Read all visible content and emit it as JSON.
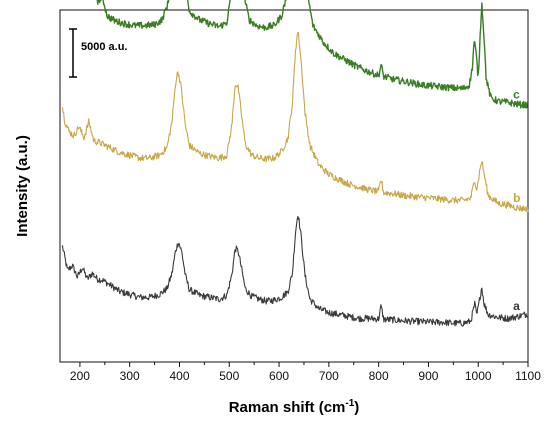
{
  "chart_data": {
    "type": "line",
    "xlabel": "Raman shift (cm",
    "xlabel_sup": "-1",
    "xlabel_close": ")",
    "ylabel": "Intensity (a.u.)",
    "xlim": [
      160,
      1100
    ],
    "x_ticks": [
      "200",
      "300",
      "400",
      "500",
      "600",
      "700",
      "800",
      "900",
      "1000",
      "1100"
    ],
    "x_tick_values": [
      200,
      300,
      400,
      500,
      600,
      700,
      800,
      900,
      1000,
      1100
    ],
    "y_ticks_shown": false,
    "scale_bar": {
      "label": "5000 a.u.",
      "value": 5000
    },
    "grid": false,
    "series": [
      {
        "name": "a",
        "color": "#3a3a3a",
        "offset": 0,
        "points": [
          [
            165,
            11000
          ],
          [
            175,
            8500
          ],
          [
            185,
            9000
          ],
          [
            195,
            7800
          ],
          [
            205,
            8800
          ],
          [
            215,
            7600
          ],
          [
            225,
            8200
          ],
          [
            235,
            7600
          ],
          [
            245,
            7500
          ],
          [
            260,
            7000
          ],
          [
            280,
            6300
          ],
          [
            300,
            6000
          ],
          [
            320,
            5700
          ],
          [
            340,
            5700
          ],
          [
            360,
            6000
          ],
          [
            375,
            6600
          ],
          [
            385,
            8200
          ],
          [
            392,
            10500
          ],
          [
            398,
            11500
          ],
          [
            405,
            10300
          ],
          [
            412,
            7900
          ],
          [
            420,
            6500
          ],
          [
            440,
            5900
          ],
          [
            460,
            5700
          ],
          [
            480,
            5500
          ],
          [
            495,
            5900
          ],
          [
            505,
            8000
          ],
          [
            512,
            10800
          ],
          [
            518,
            10500
          ],
          [
            525,
            8600
          ],
          [
            532,
            6600
          ],
          [
            545,
            5800
          ],
          [
            560,
            5500
          ],
          [
            575,
            5300
          ],
          [
            590,
            5400
          ],
          [
            605,
            5700
          ],
          [
            618,
            6300
          ],
          [
            627,
            8300
          ],
          [
            633,
            12500
          ],
          [
            638,
            14500
          ],
          [
            644,
            12200
          ],
          [
            652,
            8000
          ],
          [
            662,
            5500
          ],
          [
            680,
            4500
          ],
          [
            700,
            4100
          ],
          [
            720,
            3900
          ],
          [
            740,
            3700
          ],
          [
            760,
            3500
          ],
          [
            780,
            3500
          ],
          [
            800,
            3450
          ],
          [
            805,
            4800
          ],
          [
            810,
            3400
          ],
          [
            830,
            3350
          ],
          [
            850,
            3250
          ],
          [
            870,
            3200
          ],
          [
            890,
            3150
          ],
          [
            910,
            3100
          ],
          [
            930,
            3100
          ],
          [
            950,
            3000
          ],
          [
            970,
            3000
          ],
          [
            985,
            3200
          ],
          [
            993,
            5000
          ],
          [
            997,
            3800
          ],
          [
            1002,
            5200
          ],
          [
            1007,
            6800
          ],
          [
            1012,
            5000
          ],
          [
            1020,
            3900
          ],
          [
            1040,
            3600
          ],
          [
            1060,
            3500
          ],
          [
            1080,
            3700
          ],
          [
            1100,
            4000
          ]
        ]
      },
      {
        "name": "b",
        "color": "#c8a748",
        "offset": 13500,
        "points": [
          [
            165,
            12000
          ],
          [
            170,
            10500
          ],
          [
            178,
            9500
          ],
          [
            188,
            9000
          ],
          [
            198,
            10000
          ],
          [
            208,
            8800
          ],
          [
            218,
            10500
          ],
          [
            228,
            8500
          ],
          [
            240,
            8300
          ],
          [
            260,
            7800
          ],
          [
            280,
            7300
          ],
          [
            300,
            7000
          ],
          [
            320,
            6700
          ],
          [
            340,
            6700
          ],
          [
            360,
            7000
          ],
          [
            375,
            7800
          ],
          [
            385,
            10500
          ],
          [
            392,
            14500
          ],
          [
            397,
            15800
          ],
          [
            403,
            14200
          ],
          [
            412,
            10000
          ],
          [
            420,
            8000
          ],
          [
            440,
            7200
          ],
          [
            460,
            6900
          ],
          [
            480,
            6700
          ],
          [
            495,
            7000
          ],
          [
            505,
            10000
          ],
          [
            512,
            14500
          ],
          [
            518,
            14000
          ],
          [
            525,
            11000
          ],
          [
            532,
            8200
          ],
          [
            545,
            7000
          ],
          [
            560,
            6700
          ],
          [
            575,
            6600
          ],
          [
            590,
            6700
          ],
          [
            605,
            7400
          ],
          [
            618,
            8800
          ],
          [
            627,
            12500
          ],
          [
            633,
            18000
          ],
          [
            638,
            20000
          ],
          [
            644,
            17000
          ],
          [
            652,
            11500
          ],
          [
            662,
            8000
          ],
          [
            680,
            6000
          ],
          [
            700,
            5000
          ],
          [
            720,
            4500
          ],
          [
            740,
            4000
          ],
          [
            760,
            3700
          ],
          [
            780,
            3400
          ],
          [
            800,
            3200
          ],
          [
            805,
            4500
          ],
          [
            810,
            3100
          ],
          [
            830,
            3000
          ],
          [
            850,
            2800
          ],
          [
            870,
            2700
          ],
          [
            890,
            2600
          ],
          [
            910,
            2500
          ],
          [
            930,
            2400
          ],
          [
            950,
            2300
          ],
          [
            970,
            2300
          ],
          [
            985,
            2500
          ],
          [
            993,
            4500
          ],
          [
            997,
            3400
          ],
          [
            1002,
            5000
          ],
          [
            1007,
            6500
          ],
          [
            1012,
            5000
          ],
          [
            1020,
            2800
          ],
          [
            1040,
            2000
          ],
          [
            1060,
            1800
          ],
          [
            1080,
            1500
          ],
          [
            1100,
            1400
          ]
        ]
      },
      {
        "name": "c",
        "color": "#3a7d24",
        "offset": 26000,
        "points": [
          [
            165,
            18000
          ],
          [
            172,
            16000
          ],
          [
            180,
            14000
          ],
          [
            186,
            12500
          ],
          [
            192,
            14500
          ],
          [
            198,
            12000
          ],
          [
            204,
            15000
          ],
          [
            210,
            11500
          ],
          [
            216,
            14500
          ],
          [
            222,
            11000
          ],
          [
            230,
            12500
          ],
          [
            236,
            10500
          ],
          [
            245,
            11000
          ],
          [
            255,
            9000
          ],
          [
            270,
            8500
          ],
          [
            290,
            8200
          ],
          [
            310,
            8000
          ],
          [
            330,
            8000
          ],
          [
            350,
            8100
          ],
          [
            365,
            8600
          ],
          [
            378,
            10500
          ],
          [
            386,
            15000
          ],
          [
            392,
            19000
          ],
          [
            398,
            20200
          ],
          [
            404,
            18500
          ],
          [
            412,
            12500
          ],
          [
            420,
            9500
          ],
          [
            440,
            8600
          ],
          [
            460,
            8200
          ],
          [
            480,
            7900
          ],
          [
            495,
            8300
          ],
          [
            503,
            11000
          ],
          [
            510,
            15500
          ],
          [
            516,
            16500
          ],
          [
            522,
            15000
          ],
          [
            530,
            11000
          ],
          [
            540,
            8600
          ],
          [
            555,
            8000
          ],
          [
            570,
            7800
          ],
          [
            590,
            8000
          ],
          [
            605,
            9000
          ],
          [
            615,
            11000
          ],
          [
            623,
            15000
          ],
          [
            630,
            22000
          ],
          [
            635,
            27500
          ],
          [
            639,
            29500
          ],
          [
            643,
            27000
          ],
          [
            650,
            18000
          ],
          [
            658,
            11000
          ],
          [
            668,
            8000
          ],
          [
            690,
            6200
          ],
          [
            710,
            5100
          ],
          [
            730,
            4500
          ],
          [
            750,
            3900
          ],
          [
            770,
            3400
          ],
          [
            790,
            3000
          ],
          [
            800,
            2800
          ],
          [
            805,
            3900
          ],
          [
            810,
            2700
          ],
          [
            830,
            2400
          ],
          [
            850,
            2200
          ],
          [
            870,
            2000
          ],
          [
            890,
            1800
          ],
          [
            910,
            1700
          ],
          [
            930,
            1600
          ],
          [
            950,
            1500
          ],
          [
            970,
            1450
          ],
          [
            982,
            1800
          ],
          [
            988,
            3500
          ],
          [
            992,
            6500
          ],
          [
            996,
            5000
          ],
          [
            1000,
            2500
          ],
          [
            1004,
            7000
          ],
          [
            1007,
            10500
          ],
          [
            1011,
            7500
          ],
          [
            1016,
            2500
          ],
          [
            1025,
            500
          ],
          [
            1040,
            100
          ],
          [
            1060,
            0
          ],
          [
            1080,
            -200
          ],
          [
            1100,
            -300
          ]
        ]
      }
    ]
  }
}
